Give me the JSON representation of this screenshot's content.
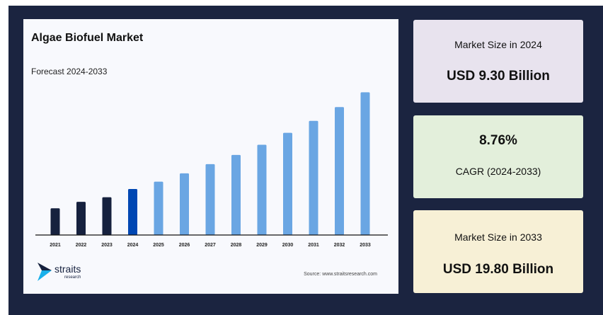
{
  "title": "Algae Biofuel Market",
  "subtitle": "Forecast 2024-2033",
  "source": "Source: www.straitsresearch.com",
  "logo": {
    "name": "straits",
    "tagline": "research"
  },
  "cards": [
    {
      "label": "Market Size in 2024",
      "value": "USD 9.30 Billion",
      "color": "#e8e3ee"
    },
    {
      "value": "8.76%",
      "label": "CAGR (2024-2033)",
      "color": "#e3efdb"
    },
    {
      "label": "Market Size in 2033",
      "value": "USD 19.80 Billion",
      "color": "#f7f0d6"
    }
  ],
  "chart_data": {
    "type": "bar",
    "title": "Algae Biofuel Market",
    "subtitle": "Forecast 2024-2033",
    "categories": [
      "2021",
      "2022",
      "2023",
      "2024",
      "2025",
      "2026",
      "2027",
      "2028",
      "2029",
      "2030",
      "2031",
      "2032",
      "2033"
    ],
    "values": [
      7.2,
      7.9,
      8.4,
      9.3,
      10.1,
      11.0,
      12.0,
      13.0,
      14.1,
      15.4,
      16.7,
      18.2,
      19.8
    ],
    "unit": "USD Billion",
    "colors": {
      "historical": "#16213e",
      "base_year": "#0047b3",
      "forecast": "#6aa6e3"
    },
    "ylim": [
      4.3,
      20.6
    ],
    "grid": false,
    "y_axis_visible": false
  }
}
